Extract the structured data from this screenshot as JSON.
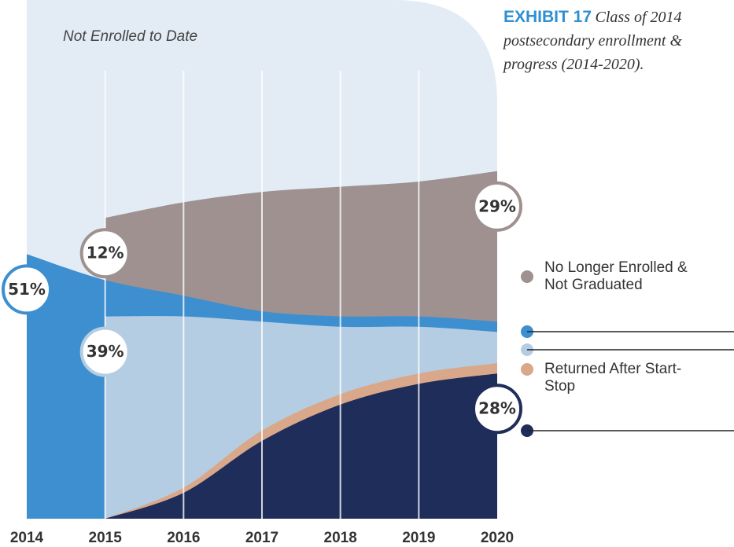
{
  "chart_data": {
    "type": "area",
    "stacked": true,
    "title": "EXHIBIT 17",
    "subtitle": "Class of 2014 postsecondary enrollment & progress (2014-2020).",
    "background_label": "Not Enrolled to Date",
    "background_color": "#e3ecf5",
    "x": [
      2014,
      2015,
      2016,
      2017,
      2018,
      2019,
      2020
    ],
    "xlim": [
      2014,
      2020
    ],
    "xticks": [
      2014,
      2015,
      2016,
      2017,
      2018,
      2019,
      2020
    ],
    "ylim": [
      0,
      100
    ],
    "grid": true,
    "series": [
      {
        "color": "#1f2d5a",
        "values": [
          null,
          0,
          5,
          15,
          22,
          26,
          28
        ],
        "value_labels": [
          null,
          null,
          null,
          null,
          null,
          null,
          "28%"
        ]
      },
      {
        "name": "Returned After Start-Stop",
        "color": "#d9a88a",
        "values": [
          null,
          0,
          1,
          2,
          2,
          2,
          2
        ]
      },
      {
        "color": "#b5cde3",
        "values": [
          null,
          39,
          33,
          21,
          13,
          9,
          6
        ],
        "value_labels": [
          null,
          "39%",
          null,
          null,
          null,
          null,
          null
        ]
      },
      {
        "color": "#3d8fcf",
        "values": [
          51,
          7,
          4,
          2,
          2,
          2,
          2
        ],
        "value_labels": [
          "51%",
          null,
          null,
          null,
          null,
          null,
          null
        ]
      },
      {
        "name": "No Longer Enrolled & Not Graduated",
        "color": "#9e9190",
        "values": [
          null,
          12,
          18,
          23,
          25,
          26,
          29
        ],
        "value_labels": [
          null,
          "12%",
          null,
          null,
          null,
          null,
          "29%"
        ]
      }
    ]
  }
}
